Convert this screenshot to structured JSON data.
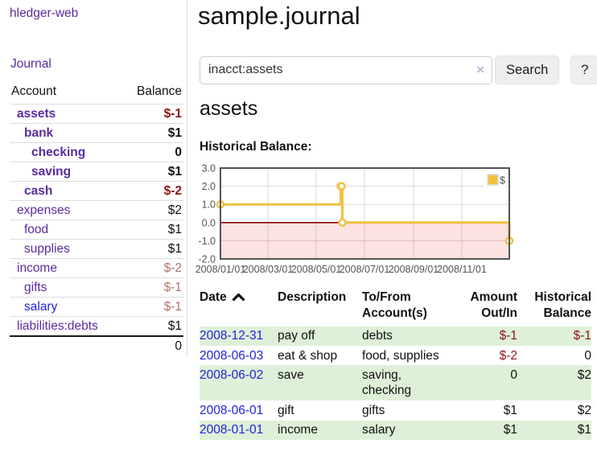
{
  "sidebar": {
    "brand": "hledger-web",
    "nav": {
      "journal_label": "Journal"
    },
    "accounts_table": {
      "account_header": "Account",
      "balance_header": "Balance",
      "rows": [
        {
          "name": "assets",
          "balance": "$-1",
          "indent": 1,
          "bold": true,
          "visited": true
        },
        {
          "name": "bank",
          "balance": "$1",
          "indent": 2,
          "bold": true,
          "visited": true
        },
        {
          "name": "checking",
          "balance": "0",
          "indent": 3,
          "bold": true,
          "visited": true
        },
        {
          "name": "saving",
          "balance": "$1",
          "indent": 3,
          "bold": true,
          "visited": true
        },
        {
          "name": "cash",
          "balance": "$-2",
          "indent": 2,
          "bold": true,
          "visited": true
        },
        {
          "name": "expenses",
          "balance": "$2",
          "indent": 1,
          "bold": false,
          "visited": true
        },
        {
          "name": "food",
          "balance": "$1",
          "indent": 2,
          "bold": false,
          "visited": true
        },
        {
          "name": "supplies",
          "balance": "$1",
          "indent": 2,
          "bold": false,
          "visited": true
        },
        {
          "name": "income",
          "balance": "$-2",
          "indent": 1,
          "bold": false,
          "visited": true
        },
        {
          "name": "gifts",
          "balance": "$-1",
          "indent": 2,
          "bold": false,
          "visited": true
        },
        {
          "name": "salary",
          "balance": "$-1",
          "indent": 2,
          "bold": false,
          "visited": false
        },
        {
          "name": "liabilities:debts",
          "balance": "$1",
          "indent": 1,
          "bold": false,
          "visited": true
        }
      ],
      "total": "0"
    }
  },
  "header": {
    "title": "sample.journal"
  },
  "search": {
    "value": "inacct:assets",
    "clear_icon": "×",
    "button_label": "Search",
    "help_label": "?"
  },
  "account_page": {
    "title": "assets",
    "chart_label": "Historical Balance:"
  },
  "chart_data": {
    "type": "line",
    "title": "Historical Balance:",
    "steps": true,
    "x_domain": [
      "2008-01-01",
      "2008-12-31"
    ],
    "ylim": [
      -2,
      3
    ],
    "grid": true,
    "series": [
      {
        "name": "$",
        "color": "#EDC240",
        "points": [
          {
            "x": "2008-01-01",
            "y": 1
          },
          {
            "x": "2008-06-01",
            "y": 2
          },
          {
            "x": "2008-06-02",
            "y": 2
          },
          {
            "x": "2008-06-03",
            "y": 0
          },
          {
            "x": "2008-12-31",
            "y": -1
          }
        ]
      }
    ],
    "y_ticks": [
      {
        "value": 3,
        "label": "3.0"
      },
      {
        "value": 2,
        "label": "2.0"
      },
      {
        "value": 1,
        "label": "1.0"
      },
      {
        "value": 0,
        "label": "0.0"
      },
      {
        "value": -1,
        "label": "-1.0"
      },
      {
        "value": -2,
        "label": "-2.0"
      }
    ],
    "x_ticks": [
      {
        "date": "2008-01-01",
        "label": "2008/01/01"
      },
      {
        "date": "2008-03-01",
        "label": "2008/03/01"
      },
      {
        "date": "2008-05-01",
        "label": "2008/05/01"
      },
      {
        "date": "2008-07-01",
        "label": "2008/07/01"
      },
      {
        "date": "2008-09-01",
        "label": "2008/09/01"
      },
      {
        "date": "2008-11-01",
        "label": "2008/11/01"
      }
    ],
    "legend": {
      "label": "$",
      "swatch_color": "#EDC240",
      "position": "top-right"
    },
    "zero_line_color": "#8b0000",
    "negative_fill": "rgba(240,30,30,0.13)",
    "border_color": "#545454",
    "grid_color": "#d9d9d9"
  },
  "register_table": {
    "headers": {
      "date": "Date",
      "description": "Description",
      "accounts": "To/From\nAccount(s)",
      "amount": "Amount\nOut/In",
      "balance": "Historical\nBalance"
    },
    "rows": [
      {
        "date": "2008-12-31",
        "description": "pay off",
        "accounts": "debts",
        "amount": "$-1",
        "balance": "$-1"
      },
      {
        "date": "2008-06-03",
        "description": "eat & shop",
        "accounts": "food, supplies",
        "amount": "$-2",
        "balance": "0"
      },
      {
        "date": "2008-06-02",
        "description": "save",
        "accounts": "saving,\nchecking",
        "amount": "0",
        "balance": "$2"
      },
      {
        "date": "2008-06-01",
        "description": "gift",
        "accounts": "gifts",
        "amount": "$1",
        "balance": "$2"
      },
      {
        "date": "2008-01-01",
        "description": "income",
        "accounts": "salary",
        "amount": "$1",
        "balance": "$1"
      }
    ]
  }
}
